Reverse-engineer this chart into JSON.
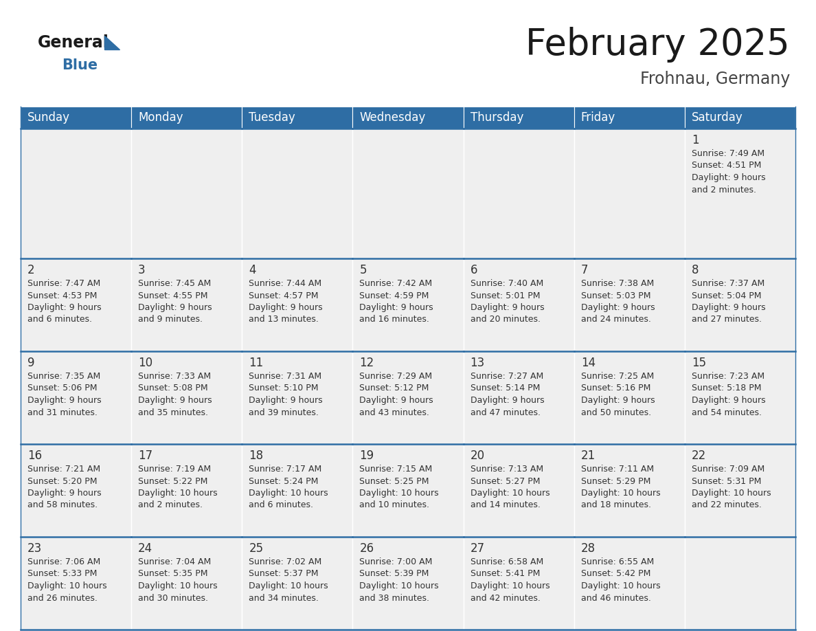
{
  "title": "February 2025",
  "subtitle": "Frohnau, Germany",
  "header_bg": "#2E6DA4",
  "header_text_color": "#FFFFFF",
  "cell_bg": "#EFEFEF",
  "border_color": "#2E6DA4",
  "day_headers": [
    "Sunday",
    "Monday",
    "Tuesday",
    "Wednesday",
    "Thursday",
    "Friday",
    "Saturday"
  ],
  "title_color": "#1a1a1a",
  "subtitle_color": "#444444",
  "day_num_color": "#333333",
  "cell_text_color": "#333333",
  "logo_general_color": "#1a1a1a",
  "logo_blue_color": "#2E6DA4",
  "logo_triangle_color": "#2E6DA4",
  "calendar": [
    [
      null,
      null,
      null,
      null,
      null,
      null,
      {
        "day": "1",
        "sunrise": "7:49 AM",
        "sunset": "4:51 PM",
        "daylight_line1": "9 hours",
        "daylight_line2": "and 2 minutes."
      }
    ],
    [
      {
        "day": "2",
        "sunrise": "7:47 AM",
        "sunset": "4:53 PM",
        "daylight_line1": "9 hours",
        "daylight_line2": "and 6 minutes."
      },
      {
        "day": "3",
        "sunrise": "7:45 AM",
        "sunset": "4:55 PM",
        "daylight_line1": "9 hours",
        "daylight_line2": "and 9 minutes."
      },
      {
        "day": "4",
        "sunrise": "7:44 AM",
        "sunset": "4:57 PM",
        "daylight_line1": "9 hours",
        "daylight_line2": "and 13 minutes."
      },
      {
        "day": "5",
        "sunrise": "7:42 AM",
        "sunset": "4:59 PM",
        "daylight_line1": "9 hours",
        "daylight_line2": "and 16 minutes."
      },
      {
        "day": "6",
        "sunrise": "7:40 AM",
        "sunset": "5:01 PM",
        "daylight_line1": "9 hours",
        "daylight_line2": "and 20 minutes."
      },
      {
        "day": "7",
        "sunrise": "7:38 AM",
        "sunset": "5:03 PM",
        "daylight_line1": "9 hours",
        "daylight_line2": "and 24 minutes."
      },
      {
        "day": "8",
        "sunrise": "7:37 AM",
        "sunset": "5:04 PM",
        "daylight_line1": "9 hours",
        "daylight_line2": "and 27 minutes."
      }
    ],
    [
      {
        "day": "9",
        "sunrise": "7:35 AM",
        "sunset": "5:06 PM",
        "daylight_line1": "9 hours",
        "daylight_line2": "and 31 minutes."
      },
      {
        "day": "10",
        "sunrise": "7:33 AM",
        "sunset": "5:08 PM",
        "daylight_line1": "9 hours",
        "daylight_line2": "and 35 minutes."
      },
      {
        "day": "11",
        "sunrise": "7:31 AM",
        "sunset": "5:10 PM",
        "daylight_line1": "9 hours",
        "daylight_line2": "and 39 minutes."
      },
      {
        "day": "12",
        "sunrise": "7:29 AM",
        "sunset": "5:12 PM",
        "daylight_line1": "9 hours",
        "daylight_line2": "and 43 minutes."
      },
      {
        "day": "13",
        "sunrise": "7:27 AM",
        "sunset": "5:14 PM",
        "daylight_line1": "9 hours",
        "daylight_line2": "and 47 minutes."
      },
      {
        "day": "14",
        "sunrise": "7:25 AM",
        "sunset": "5:16 PM",
        "daylight_line1": "9 hours",
        "daylight_line2": "and 50 minutes."
      },
      {
        "day": "15",
        "sunrise": "7:23 AM",
        "sunset": "5:18 PM",
        "daylight_line1": "9 hours",
        "daylight_line2": "and 54 minutes."
      }
    ],
    [
      {
        "day": "16",
        "sunrise": "7:21 AM",
        "sunset": "5:20 PM",
        "daylight_line1": "9 hours",
        "daylight_line2": "and 58 minutes."
      },
      {
        "day": "17",
        "sunrise": "7:19 AM",
        "sunset": "5:22 PM",
        "daylight_line1": "10 hours",
        "daylight_line2": "and 2 minutes."
      },
      {
        "day": "18",
        "sunrise": "7:17 AM",
        "sunset": "5:24 PM",
        "daylight_line1": "10 hours",
        "daylight_line2": "and 6 minutes."
      },
      {
        "day": "19",
        "sunrise": "7:15 AM",
        "sunset": "5:25 PM",
        "daylight_line1": "10 hours",
        "daylight_line2": "and 10 minutes."
      },
      {
        "day": "20",
        "sunrise": "7:13 AM",
        "sunset": "5:27 PM",
        "daylight_line1": "10 hours",
        "daylight_line2": "and 14 minutes."
      },
      {
        "day": "21",
        "sunrise": "7:11 AM",
        "sunset": "5:29 PM",
        "daylight_line1": "10 hours",
        "daylight_line2": "and 18 minutes."
      },
      {
        "day": "22",
        "sunrise": "7:09 AM",
        "sunset": "5:31 PM",
        "daylight_line1": "10 hours",
        "daylight_line2": "and 22 minutes."
      }
    ],
    [
      {
        "day": "23",
        "sunrise": "7:06 AM",
        "sunset": "5:33 PM",
        "daylight_line1": "10 hours",
        "daylight_line2": "and 26 minutes."
      },
      {
        "day": "24",
        "sunrise": "7:04 AM",
        "sunset": "5:35 PM",
        "daylight_line1": "10 hours",
        "daylight_line2": "and 30 minutes."
      },
      {
        "day": "25",
        "sunrise": "7:02 AM",
        "sunset": "5:37 PM",
        "daylight_line1": "10 hours",
        "daylight_line2": "and 34 minutes."
      },
      {
        "day": "26",
        "sunrise": "7:00 AM",
        "sunset": "5:39 PM",
        "daylight_line1": "10 hours",
        "daylight_line2": "and 38 minutes."
      },
      {
        "day": "27",
        "sunrise": "6:58 AM",
        "sunset": "5:41 PM",
        "daylight_line1": "10 hours",
        "daylight_line2": "and 42 minutes."
      },
      {
        "day": "28",
        "sunrise": "6:55 AM",
        "sunset": "5:42 PM",
        "daylight_line1": "10 hours",
        "daylight_line2": "and 46 minutes."
      },
      null
    ]
  ]
}
